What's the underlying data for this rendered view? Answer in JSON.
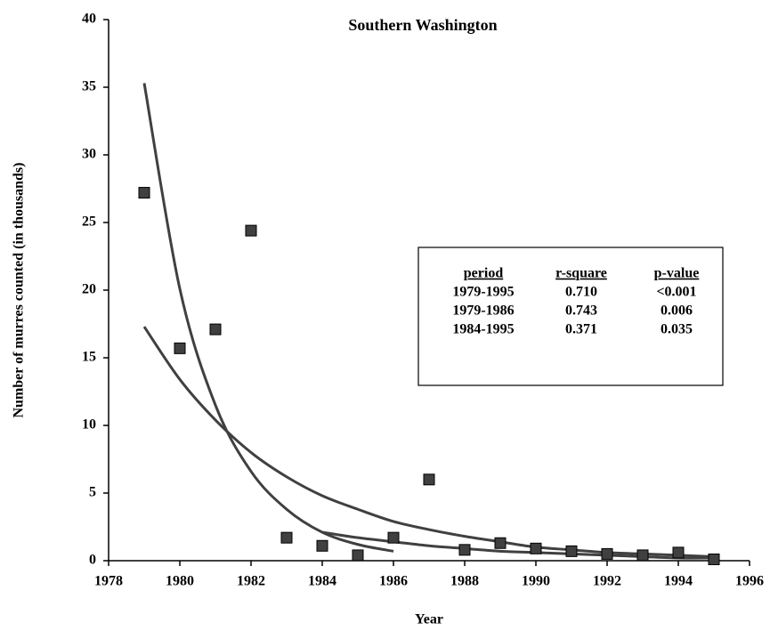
{
  "chart_data": {
    "type": "scatter",
    "title": "Southern Washington",
    "x_label": "Year",
    "y_label": "Number of murres counted (in thousands)",
    "x": [
      1979,
      1980,
      1981,
      1982,
      1983,
      1984,
      1985,
      1986,
      1987,
      1988,
      1989,
      1990,
      1991,
      1992,
      1993,
      1994,
      1995
    ],
    "values": [
      27.2,
      15.7,
      17.1,
      24.4,
      1.7,
      1.1,
      0.4,
      1.7,
      6.0,
      0.8,
      1.3,
      0.9,
      0.7,
      0.5,
      0.4,
      0.6,
      0.1
    ],
    "color": "#404040",
    "trendlines": [
      {
        "color": "#404040",
        "x": [
          1979,
          1980,
          1981,
          1982,
          1983,
          1984,
          1985,
          1986,
          1987,
          1988,
          1989,
          1990,
          1991,
          1992,
          1993,
          1994,
          1995
        ],
        "values": [
          17.3,
          13.4,
          10.4,
          8.0,
          6.2,
          4.8,
          3.8,
          2.9,
          2.3,
          1.8,
          1.4,
          1.0,
          0.8,
          0.6,
          0.5,
          0.4,
          0.3
        ]
      },
      {
        "color": "#404040",
        "x": [
          1979,
          1980,
          1981,
          1982,
          1983,
          1984,
          1985,
          1986
        ],
        "values": [
          35.3,
          20.1,
          11.5,
          6.6,
          3.8,
          2.1,
          1.2,
          0.7
        ]
      },
      {
        "color": "#404040",
        "x": [
          1984,
          1985,
          1986,
          1987,
          1988,
          1989,
          1990,
          1991,
          1992,
          1993,
          1994,
          1995
        ],
        "values": [
          2.1,
          1.7,
          1.4,
          1.1,
          0.9,
          0.7,
          0.6,
          0.5,
          0.4,
          0.3,
          0.2,
          0.2
        ]
      }
    ],
    "xlim": [
      1978,
      1996
    ],
    "xticks": [
      1978,
      1980,
      1982,
      1984,
      1986,
      1988,
      1990,
      1992,
      1994,
      1996
    ],
    "ylim": [
      0,
      40
    ],
    "yticks": [
      0,
      5,
      10,
      15,
      20,
      25,
      30,
      35,
      40
    ],
    "table": {
      "header": [
        "period",
        "r-square",
        "p-value"
      ],
      "rows": [
        [
          "1979-1995",
          "0.710",
          "<0.001"
        ],
        [
          "1979-1986",
          "0.743",
          "0.006"
        ],
        [
          "1984-1995",
          "0.371",
          "0.035"
        ]
      ]
    }
  }
}
